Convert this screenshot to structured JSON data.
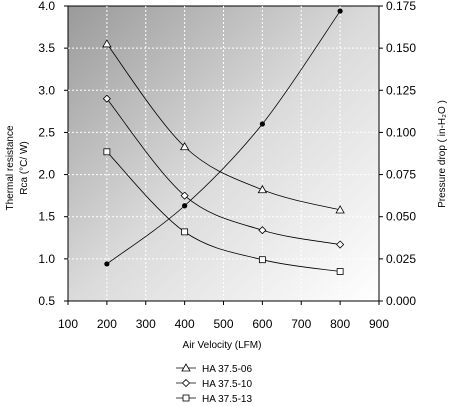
{
  "chart_data": {
    "type": "line",
    "xlabel": "Air Velocity (LFM)",
    "ylabel_line1": "Thermal resistance",
    "ylabel_line2": "Rca (°C/ W)",
    "y2label": "Pressure drop ( in-H₂O )",
    "xlim": [
      100,
      900
    ],
    "ylim": [
      0.5,
      4.0
    ],
    "y2lim": [
      0.0,
      0.175
    ],
    "xticks": [
      "100",
      "200",
      "300",
      "400",
      "500",
      "600",
      "700",
      "800",
      "900"
    ],
    "yticks": [
      "0.5",
      "1.0",
      "1.5",
      "2.0",
      "2.5",
      "3.0",
      "3.5",
      "4.0"
    ],
    "y2ticks": [
      "0.000",
      "0.025",
      "0.050",
      "0.075",
      "0.100",
      "0.125",
      "0.150",
      "0.175"
    ],
    "grid": "dashed",
    "background": "gradient",
    "series": [
      {
        "name": "HA 37.5-06",
        "marker": "triangle",
        "axis": "left",
        "x": [
          200,
          400,
          600,
          800
        ],
        "values": [
          3.55,
          2.33,
          1.82,
          1.58
        ]
      },
      {
        "name": "HA 37.5-10",
        "marker": "diamond",
        "axis": "left",
        "x": [
          200,
          400,
          600,
          800
        ],
        "values": [
          2.9,
          1.75,
          1.34,
          1.17
        ]
      },
      {
        "name": "HA 37.5-13",
        "marker": "square",
        "axis": "left",
        "x": [
          200,
          400,
          600,
          800
        ],
        "values": [
          2.27,
          1.32,
          0.99,
          0.85
        ]
      },
      {
        "marker": "filled-circle",
        "axis": "right",
        "x": [
          200,
          400,
          600,
          800
        ],
        "values": [
          0.022,
          0.0565,
          0.105,
          0.172
        ]
      }
    ],
    "legend_position": "bottom-center"
  }
}
